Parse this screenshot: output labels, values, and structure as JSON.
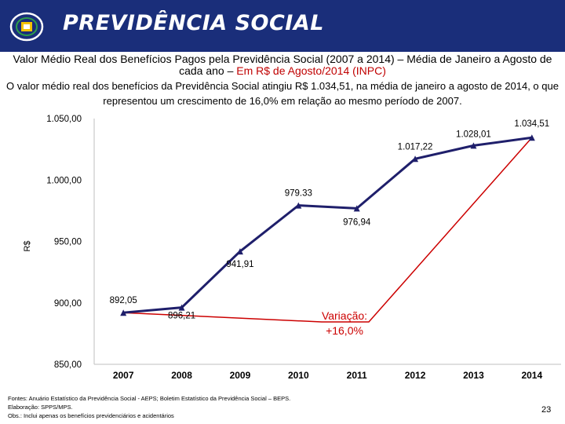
{
  "header": {
    "brand": "PREVIDÊNCIA SOCIAL",
    "logo_icon": "previdencia-logo-icon"
  },
  "title_main": "Valor Médio Real dos Benefícios Pagos pela Previdência Social (2007 a 2014) – Média de Janeiro a Agosto de cada ano – ",
  "title_highlight": "Em R$ de Agosto/2014 (INPC)",
  "subtitle": "O valor médio real dos benefícios da Previdência Social atingiu R$ 1.034,51, na média de janeiro a agosto de 2014, o que representou um crescimento de 16,0% em relação ao mesmo período de 2007.",
  "colors": {
    "header": "#1a2e7a",
    "series": "#1f1f6b",
    "variation": "#cc0000",
    "highlight": "#c00000"
  },
  "chart_data": {
    "type": "line",
    "x": [
      "2007",
      "2008",
      "2009",
      "2010",
      "2011",
      "2012",
      "2013",
      "2014"
    ],
    "series": [
      {
        "values": [
          892.05,
          896.21,
          941.91,
          979.33,
          976.94,
          1017.22,
          1028.01,
          1034.51
        ]
      }
    ],
    "data_labels": [
      "892,05",
      "896,21",
      "941,91",
      "979.33",
      "976,94",
      "1.017,22",
      "1.028,01",
      "1.034,51"
    ],
    "yticks": [
      "850,00",
      "900,00",
      "950,00",
      "1.000,00",
      "1.050,00"
    ],
    "ytick_values": [
      850,
      900,
      950,
      1000,
      1050
    ],
    "ylim": [
      850,
      1050
    ],
    "ylabel": "R$",
    "annotation": {
      "line1": "Variação:",
      "line2": "+16,0%"
    },
    "grid": false
  },
  "footer": {
    "line1": "Fontes: Anuário Estatístico da Previdência Social - AEPS; Boletim Estatístico da Previdência Social – BEPS.",
    "line2": "Elaboração: SPPS/MPS.",
    "line3": "Obs.: Inclui apenas os benefícios previdenciários e acidentários"
  },
  "page_number": "23"
}
